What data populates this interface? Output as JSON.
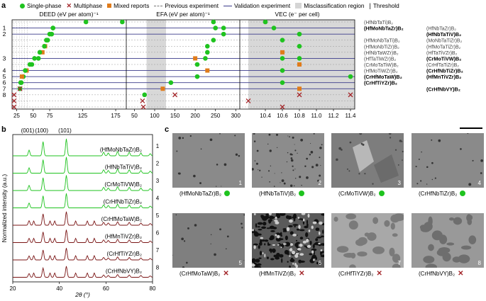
{
  "panels": {
    "a": "a",
    "b": "b",
    "c": "c"
  },
  "legend": {
    "single_phase": "Single-phase",
    "multiphase": "Multiphase",
    "mixed_reports": "Mixed reports",
    "previous_experiment": "Previous experiment",
    "validation_experiment": "Validation experiment",
    "misclassification_region": "Misclassification region",
    "threshold": "Threshold"
  },
  "colors": {
    "single": "#1fc31f",
    "multi": "#a3262a",
    "mixed": "#e07b1a",
    "grey_region": "#d8d8d8",
    "validation": "#3a3a8a",
    "xrd_green": "#1fc31f",
    "xrd_red": "#7a1515"
  },
  "chart_data": [
    {
      "type": "scatter",
      "title": "",
      "sections": [
        {
          "name": "DEED",
          "xlabel": "DEED (eV per atom)⁻¹",
          "ticks": [
            25,
            50,
            75,
            125,
            175
          ]
        },
        {
          "name": "EFA",
          "xlabel": "EFA (eV per atom)⁻¹",
          "ticks": [
            50,
            100,
            150,
            200,
            250,
            300
          ]
        },
        {
          "name": "VEC",
          "xlabel": "VEC (e⁻ per cell)",
          "ticks": [
            "10.4",
            "10.6",
            "10.8",
            "11.0",
            "11.2",
            "11.4"
          ]
        }
      ],
      "row_markers": [
        {
          "label": "1",
          "row": 1
        },
        {
          "label": "2",
          "row": 2
        },
        {
          "label": "3",
          "row": 6
        },
        {
          "label": "4",
          "row": 8
        },
        {
          "label": "5",
          "row": 9
        },
        {
          "label": "6",
          "row": 10
        },
        {
          "label": "7",
          "row": 11
        },
        {
          "label": "8",
          "row": 12
        }
      ],
      "right_labels": [
        {
          "row": 0,
          "name": "(HfNbTaTi)B₂",
          "col": 0,
          "bold": false
        },
        {
          "row": 1,
          "name": "(HfNbTaZr)B₂",
          "col": 1,
          "bold": false
        },
        {
          "row": 1,
          "name": "(HfMoNbTaZr)B₂",
          "col": 0,
          "bold": true
        },
        {
          "row": 2,
          "name": "(HfNbTaTiV)B₂",
          "col": 1,
          "bold": true
        },
        {
          "row": 3,
          "name": "(HfMoNbTaTi)B₂",
          "col": 0,
          "bold": false
        },
        {
          "row": 3,
          "name": "(MoNbTaTiZr)B₂",
          "col": 1,
          "bold": false
        },
        {
          "row": 4,
          "name": "(HfMoNbTiZr)B₂",
          "col": 0,
          "bold": false
        },
        {
          "row": 4,
          "name": "(HfMoTaTiZr)B₂",
          "col": 1,
          "bold": false
        },
        {
          "row": 5,
          "name": "(HfNbTaWZr)B₂",
          "col": 0,
          "bold": false
        },
        {
          "row": 5,
          "name": "(HfTaTiVZr)B₂",
          "col": 1,
          "bold": false
        },
        {
          "row": 6,
          "name": "(HfTaTiWZr)B₂",
          "col": 0,
          "bold": false
        },
        {
          "row": 6,
          "name": "(CrMoTiVW)B₂",
          "col": 1,
          "bold": true
        },
        {
          "row": 7,
          "name": "(CrMoTaTiW)B₂",
          "col": 0,
          "bold": false
        },
        {
          "row": 7,
          "name": "(CrHfTaTiZr)B₂",
          "col": 1,
          "bold": false
        },
        {
          "row": 8,
          "name": "(HfMoTiWZr)B₂",
          "col": 0,
          "bold": false
        },
        {
          "row": 8,
          "name": "(CrHfNbTiZr)B₂",
          "col": 1,
          "bold": true
        },
        {
          "row": 9,
          "name": "(CrHfMoTaW)B₂",
          "col": 0,
          "bold": true
        },
        {
          "row": 9,
          "name": "(HfMnTiVZr)B₂",
          "col": 1,
          "bold": true
        },
        {
          "row": 10,
          "name": "(CrHfTiYZr)B₂",
          "col": 0,
          "bold": true
        },
        {
          "row": 11,
          "name": "(CrHfNbVY)B₂",
          "col": 1,
          "bold": true
        }
      ],
      "points": {
        "deed": [
          {
            "row": 0,
            "x": 130,
            "k": "s"
          },
          {
            "row": 0,
            "x": 185,
            "k": "s"
          },
          {
            "row": 1,
            "x": 80,
            "k": "s"
          },
          {
            "row": 1,
            "x": 80,
            "k": "s"
          },
          {
            "row": 2,
            "x": 78,
            "k": "s"
          },
          {
            "row": 2,
            "x": 75,
            "k": "s"
          },
          {
            "row": 3,
            "x": 72,
            "k": "s"
          },
          {
            "row": 3,
            "x": 70,
            "k": "s"
          },
          {
            "row": 4,
            "x": 68,
            "k": "m"
          },
          {
            "row": 4,
            "x": 67,
            "k": "s"
          },
          {
            "row": 5,
            "x": 64,
            "k": "m"
          },
          {
            "row": 5,
            "x": 60,
            "k": "s"
          },
          {
            "row": 6,
            "x": 58,
            "k": "s"
          },
          {
            "row": 6,
            "x": 52,
            "k": "s"
          },
          {
            "row": 7,
            "x": 48,
            "k": "s"
          },
          {
            "row": 7,
            "x": 45,
            "k": "s"
          },
          {
            "row": 8,
            "x": 40,
            "k": "m"
          },
          {
            "row": 8,
            "x": 38,
            "k": "s"
          },
          {
            "row": 9,
            "x": 35,
            "k": "s"
          },
          {
            "row": 9,
            "x": 33,
            "k": "m"
          },
          {
            "row": 10,
            "x": 32,
            "k": "s"
          },
          {
            "row": 10,
            "x": 31,
            "k": "s"
          },
          {
            "row": 11,
            "x": 30,
            "k": "s"
          },
          {
            "row": 11,
            "x": 30,
            "k": "x"
          },
          {
            "row": 12,
            "x": 21,
            "k": "x"
          },
          {
            "row": 13,
            "x": 21,
            "k": "x"
          },
          {
            "row": 14,
            "x": 21,
            "k": "x"
          }
        ],
        "efa": [
          {
            "row": 0,
            "x": 245,
            "k": "s"
          },
          {
            "row": 1,
            "x": 270,
            "k": "s"
          },
          {
            "row": 1,
            "x": 250,
            "k": "s"
          },
          {
            "row": 2,
            "x": 270,
            "k": "s"
          },
          {
            "row": 3,
            "x": 245,
            "k": "s"
          },
          {
            "row": 4,
            "x": 230,
            "k": "s"
          },
          {
            "row": 5,
            "x": 230,
            "k": "s"
          },
          {
            "row": 6,
            "x": 225,
            "k": "s"
          },
          {
            "row": 6,
            "x": 200,
            "k": "m"
          },
          {
            "row": 7,
            "x": 205,
            "k": "s"
          },
          {
            "row": 8,
            "x": 230,
            "k": "m"
          },
          {
            "row": 9,
            "x": 205,
            "k": "s"
          },
          {
            "row": 10,
            "x": 140,
            "k": "s"
          },
          {
            "row": 11,
            "x": 120,
            "k": "m"
          },
          {
            "row": 12,
            "x": 75,
            "k": "s"
          },
          {
            "row": 12,
            "x": 150,
            "k": "x"
          },
          {
            "row": 13,
            "x": 70,
            "k": "x"
          },
          {
            "row": 14,
            "x": 72,
            "k": "x"
          }
        ],
        "vec": [
          {
            "row": 0,
            "x": 10.4,
            "k": "s"
          },
          {
            "row": 1,
            "x": 10.5,
            "k": "s"
          },
          {
            "row": 2,
            "x": 10.8,
            "k": "s"
          },
          {
            "row": 3,
            "x": 10.6,
            "k": "s"
          },
          {
            "row": 4,
            "x": 10.8,
            "k": "s"
          },
          {
            "row": 5,
            "x": 10.6,
            "k": "m"
          },
          {
            "row": 6,
            "x": 10.8,
            "k": "s"
          },
          {
            "row": 6,
            "x": 10.6,
            "k": "s"
          },
          {
            "row": 7,
            "x": 10.8,
            "k": "m"
          },
          {
            "row": 8,
            "x": 10.6,
            "k": "s"
          },
          {
            "row": 9,
            "x": 11.4,
            "k": "s"
          },
          {
            "row": 10,
            "x": 10.6,
            "k": "s"
          },
          {
            "row": 11,
            "x": 10.8,
            "k": "m"
          },
          {
            "row": 12,
            "x": 11.4,
            "k": "x"
          },
          {
            "row": 12,
            "x": 10.8,
            "k": "x"
          },
          {
            "row": 13,
            "x": 10.2,
            "k": "x"
          },
          {
            "row": 14,
            "x": 10.6,
            "k": "x"
          }
        ]
      }
    },
    {
      "type": "line",
      "title": "",
      "xlabel": "2θ (°)",
      "ylabel": "Normalized intensity (a.u.)",
      "xticks": [
        20,
        40,
        60,
        80
      ],
      "xlim": [
        20,
        80
      ],
      "peak_labels": [
        "(001)",
        "(100)",
        "(101)"
      ],
      "series": [
        {
          "name": "(HfMoNbTaZr)B₂",
          "num": "1",
          "phase": "single"
        },
        {
          "name": "(HfNbTaTiV)B₂",
          "num": "2",
          "phase": "single"
        },
        {
          "name": "(CrMoTiVW)B₂",
          "num": "3",
          "phase": "single"
        },
        {
          "name": "(CrHfNbTiZr)B₂",
          "num": "4",
          "phase": "single"
        },
        {
          "name": "(CrHfMoTaW)B₂",
          "num": "5",
          "phase": "multi"
        },
        {
          "name": "(HfMnTiVZr)B₂",
          "num": "6",
          "phase": "multi"
        },
        {
          "name": "(CrHfTiYZr)B₂",
          "num": "7",
          "phase": "multi"
        },
        {
          "name": "(CrHfNbVY)B₂",
          "num": "8",
          "phase": "multi"
        }
      ],
      "peaks": [
        27,
        33,
        43,
        59,
        61,
        65,
        70,
        75,
        79
      ]
    }
  ],
  "micrographs": [
    {
      "num": "1",
      "name": "(HfMoNbTaZr)B₂",
      "phase": "single"
    },
    {
      "num": "2",
      "name": "(HfNbTaTiV)B₂",
      "phase": "single"
    },
    {
      "num": "3",
      "name": "(CrMoTiVW)B₂",
      "phase": "single"
    },
    {
      "num": "4",
      "name": "(CrHfNbTiZr)B₂",
      "phase": "single"
    },
    {
      "num": "5",
      "name": "(CrHfMoTaW)B₂",
      "phase": "multi"
    },
    {
      "num": "6",
      "name": "(HfMnTiVZr)B₂",
      "phase": "multi"
    },
    {
      "num": "7",
      "name": "(CrHfTiYZr)B₂",
      "phase": "multi"
    },
    {
      "num": "8",
      "name": "(CrHfNbVY)B₂",
      "phase": "multi"
    }
  ]
}
